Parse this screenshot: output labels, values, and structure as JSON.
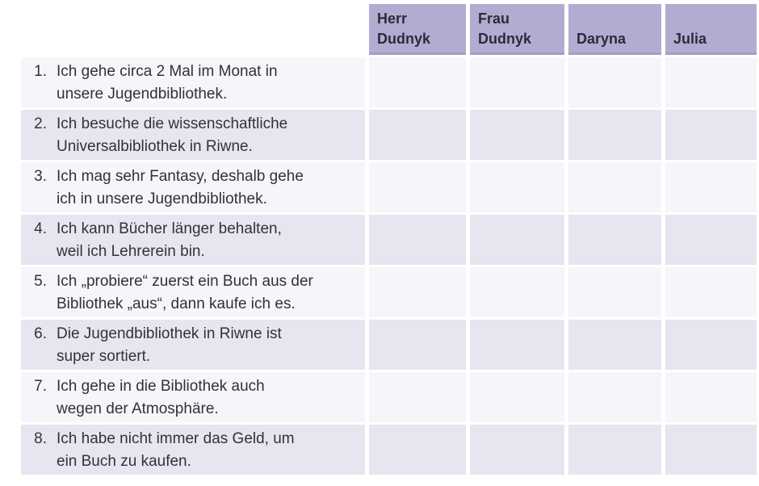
{
  "table": {
    "columns": [
      "Herr Dudnyk",
      "Frau Dudnyk",
      "Daryna",
      "Julia"
    ],
    "rows": [
      {
        "num": "1.",
        "text": "Ich gehe circa 2 Mal im Monat in\nunsere Jugendbibliothek."
      },
      {
        "num": "2.",
        "text": "Ich besuche die wissenschaftliche\nUniversalbibliothek in Riwne."
      },
      {
        "num": "3.",
        "text": "Ich mag sehr Fantasy, deshalb gehe\nich in unsere Jugendbibliothek."
      },
      {
        "num": "4.",
        "text": "Ich kann Bücher länger behalten,\nweil ich Lehrerein bin."
      },
      {
        "num": "5.",
        "text": "Ich „probiere“ zuerst ein Buch aus der\nBibliothek „aus“, dann kaufe ich es."
      },
      {
        "num": "6.",
        "text": "Die Jugendbibliothek in Riwne ist\nsuper sortiert."
      },
      {
        "num": "7.",
        "text": "Ich gehe in die Bibliothek auch\nwegen der Atmosphäre."
      },
      {
        "num": "8.",
        "text": "Ich habe nicht immer das Geld, um\nein Buch zu kaufen."
      }
    ]
  },
  "colors": {
    "header_bg": "#b2acd3",
    "header_edge": "#a49dc8",
    "row_odd_bg": "#f6f5f9",
    "row_even_bg": "#e7e5ef",
    "text": "#333138",
    "page_bg": "#ffffff"
  }
}
